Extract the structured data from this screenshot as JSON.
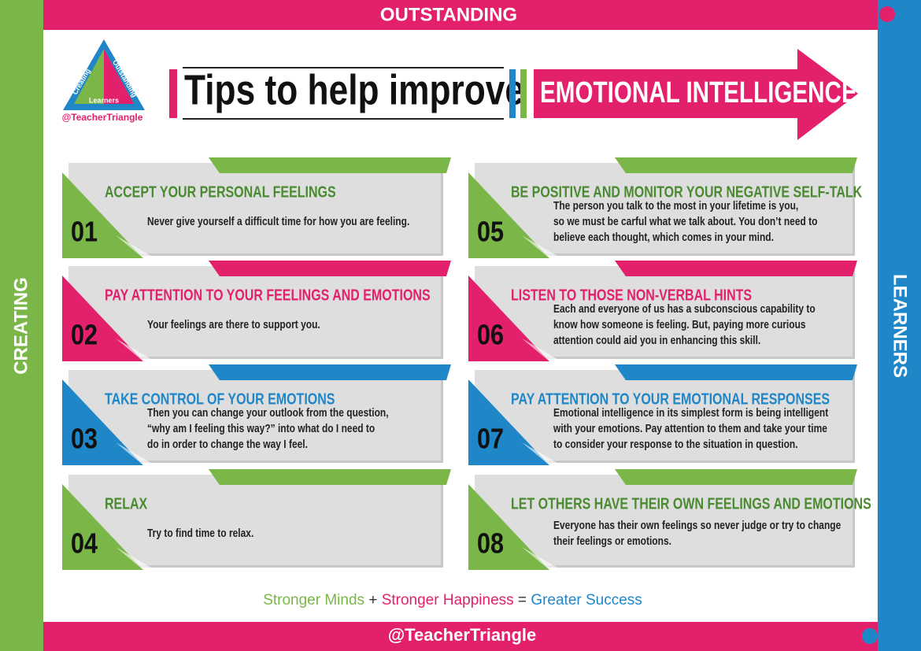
{
  "frame": {
    "top": "OUTSTANDING",
    "left": "CREATING",
    "right": "LEARNERS",
    "bottom": "@TeacherTriangle"
  },
  "logo": {
    "left": "Creating",
    "right": "Outstanding",
    "bottom": "Learners",
    "handle": "@TeacherTriangle"
  },
  "header": {
    "title": "Tips to help improve",
    "arrow": "EMOTIONAL INTELLIGENCE"
  },
  "tips": [
    {
      "number": "01",
      "title": "ACCEPT YOUR PERSONAL FEELINGS",
      "color": "#7ab648",
      "title_color": "#4a8a30",
      "text": [
        "Never give yourself a difficult time for how you are feeling."
      ]
    },
    {
      "number": "02",
      "title": "PAY ATTENTION TO YOUR FEELINGS AND EMOTIONS",
      "color": "#e3206b",
      "title_color": "#e3206b",
      "text": [
        "Your feelings are there to support you."
      ]
    },
    {
      "number": "03",
      "title": "TAKE CONTROL OF YOUR EMOTIONS",
      "color": "#1f86c8",
      "title_color": "#1f86c8",
      "text": [
        "Then you can change your outlook from the question,",
        "“why am I feeling this way?” into what do I need to",
        "do in order to change the way I feel."
      ]
    },
    {
      "number": "04",
      "title": "RELAX",
      "color": "#7ab648",
      "title_color": "#4a8a30",
      "text": [
        "Try to find time to relax."
      ]
    },
    {
      "number": "05",
      "title": "BE POSITIVE AND MONITOR YOUR NEGATIVE SELF-TALK",
      "color": "#7ab648",
      "title_color": "#4a8a30",
      "text": [
        "The person you talk to the most in your lifetime is you,",
        "so we must be carful what we talk about. You don’t need to",
        "believe each thought, which comes in your mind."
      ]
    },
    {
      "number": "06",
      "title": "LISTEN TO THOSE NON-VERBAL HINTS",
      "color": "#e3206b",
      "title_color": "#e3206b",
      "text": [
        "Each and everyone of us has a subconscious capability to",
        "know how someone is feeling. But, paying more curious",
        "attention could aid you in enhancing this skill."
      ]
    },
    {
      "number": "07",
      "title": "PAY ATTENTION TO YOUR EMOTIONAL RESPONSES",
      "color": "#1f86c8",
      "title_color": "#1f86c8",
      "text": [
        "Emotional intelligence in its simplest form is being intelligent",
        "with your emotions. Pay attention to them and take your time",
        "to consider your response to the situation in question."
      ]
    },
    {
      "number": "08",
      "title": "LET OTHERS HAVE THEIR OWN FEELINGS AND EMOTIONS",
      "color": "#7ab648",
      "title_color": "#4a8a30",
      "text": [
        "Everyone has their own feelings so never judge or try to change",
        "their feelings or emotions."
      ]
    }
  ],
  "slogan": [
    {
      "text": "Stronger Minds",
      "color": "#7ab648"
    },
    {
      "text": "+",
      "color": "#333333"
    },
    {
      "text": "Stronger Happiness",
      "color": "#e3206b"
    },
    {
      "text": "=",
      "color": "#333333"
    },
    {
      "text": "Greater Success",
      "color": "#1f86c8"
    }
  ]
}
